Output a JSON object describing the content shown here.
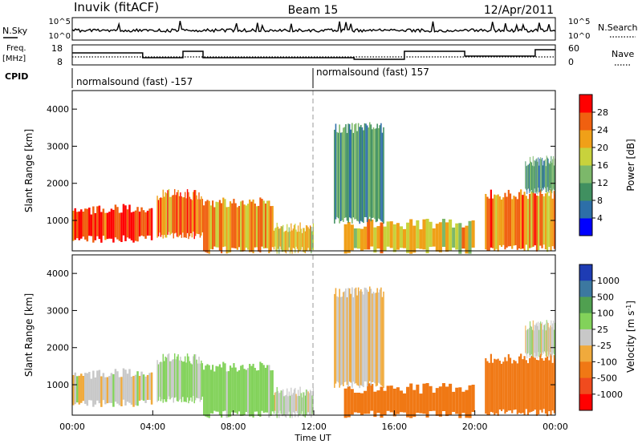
{
  "header": {
    "station": "Inuvik (fitACF)",
    "beam": "Beam 15",
    "date": "12/Apr/2011"
  },
  "noise_panel": {
    "left_label": "N.Sky",
    "left_ticks": [
      "10^5",
      "10^0"
    ],
    "right_label": "N.Search",
    "right_ticks": [
      "10^5",
      "10^0"
    ]
  },
  "freq_panel": {
    "left_label_line1": "Freq.",
    "left_label_line2": "[MHz]",
    "left_ticks": [
      "18",
      "8"
    ],
    "right_label": "Nave",
    "right_ticks": [
      "60",
      "0"
    ]
  },
  "cpid_panel": {
    "label": "CPID",
    "modes": [
      "normalsound (fast) -157",
      "normalsound (fast) 157"
    ],
    "change_time": 12.0
  },
  "axes": {
    "ylabel": "Slant Range [km]",
    "xlabel": "Time UT",
    "xticks": [
      "00:00",
      "04:00",
      "08:00",
      "12:00",
      "16:00",
      "20:00",
      "00:00"
    ],
    "yticks": [
      "1000",
      "2000",
      "3000",
      "4000"
    ]
  },
  "power_colorbar": {
    "label": "Power [dB]",
    "ticks": [
      "4",
      "8",
      "12",
      "16",
      "20",
      "24",
      "28"
    ],
    "colors": [
      "#0000ff",
      "#2d6fa8",
      "#409060",
      "#7cb86a",
      "#c8d23c",
      "#f0a018",
      "#f06010",
      "#ff0000"
    ]
  },
  "velocity_colorbar": {
    "label": "Velocity [m s^-1]",
    "ticks": [
      "1000",
      "500",
      "100",
      "25",
      "-25",
      "-100",
      "-500",
      "-1000"
    ],
    "colors": [
      "#1e3cb4",
      "#3c78a0",
      "#50a050",
      "#82d25a",
      "#c8c8c8",
      "#f0aa3c",
      "#f07814",
      "#f04b1e",
      "#ff0000"
    ]
  },
  "chart_data": {
    "type": "heatmap",
    "title": "Beam 15",
    "xlabel": "Time UT",
    "ylabel": "Slant Range [km]",
    "xlim": [
      0,
      24
    ],
    "ylim": [
      180,
      4500
    ],
    "echo_regions": [
      {
        "t0": 0.0,
        "t1": 4.0,
        "r0": 500,
        "r1": 1300,
        "power_db": 28,
        "velocity": -10
      },
      {
        "t0": 4.2,
        "t1": 6.5,
        "r0": 600,
        "r1": 1700,
        "power_db": 24,
        "velocity": 40
      },
      {
        "t0": 6.5,
        "t1": 10.0,
        "r0": 200,
        "r1": 1500,
        "power_db": 22,
        "velocity": 60
      },
      {
        "t0": 10.0,
        "t1": 12.0,
        "r0": 200,
        "r1": 800,
        "power_db": 20,
        "velocity": 10
      },
      {
        "t0": 13.5,
        "t1": 20.0,
        "r0": 200,
        "r1": 900,
        "power_db": 20,
        "velocity": -150
      },
      {
        "t0": 13.0,
        "t1": 15.5,
        "r0": 1000,
        "r1": 3500,
        "power_db": 10,
        "velocity": -30
      },
      {
        "t0": 20.5,
        "t1": 24.0,
        "r0": 250,
        "r1": 1700,
        "power_db": 24,
        "velocity": -200
      },
      {
        "t0": 22.5,
        "t1": 24.0,
        "r0": 1800,
        "r1": 2600,
        "power_db": 10,
        "velocity": 5
      }
    ],
    "noise_sky_range": [
      1,
      100000
    ],
    "freq_mhz_range": [
      8,
      18
    ],
    "nave_range": [
      0,
      60
    ]
  }
}
